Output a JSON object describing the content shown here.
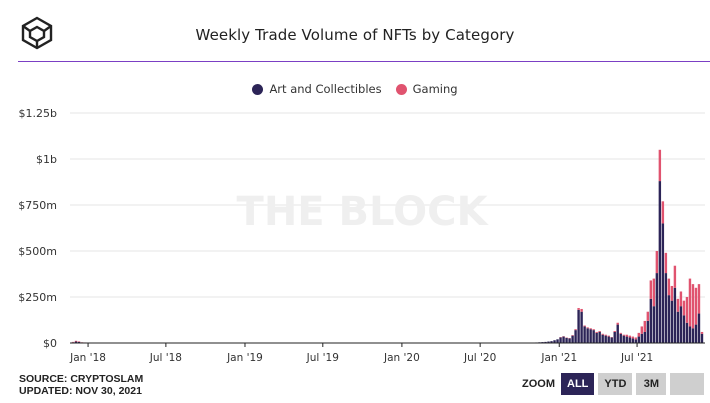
{
  "header": {
    "title": "Weekly Trade Volume of NFTs by Category"
  },
  "footer": {
    "source": "SOURCE: CRYPTOSLAM",
    "updated": "UPDATED: NOV 30, 2021"
  },
  "zoom": {
    "label": "ZOOM",
    "buttons": [
      "ALL",
      "YTD",
      "3M",
      ""
    ],
    "active": "ALL"
  },
  "watermark": "THE BLOCK",
  "colors": {
    "art": "#2c2457",
    "gaming": "#e0536f",
    "grid": "#e6e6e6",
    "accent": "#7b3fc4"
  },
  "chart_data": {
    "type": "bar",
    "stacked": true,
    "title": "Weekly Trade Volume of NFTs by Category",
    "legend_position": "top",
    "y_ticks": [
      "$0",
      "$250m",
      "$500m",
      "$750m",
      "$1b",
      "$1.25b"
    ],
    "ylim": [
      0,
      1250
    ],
    "y_unit": "millions USD",
    "x_tick_labels": [
      "Jan '18",
      "Jul '18",
      "Jan '19",
      "Jul '19",
      "Jan '20",
      "Jul '20",
      "Jan '21",
      "Jul '21"
    ],
    "x_tick_dates": [
      "2018-01-01",
      "2018-07-01",
      "2019-01-01",
      "2019-07-01",
      "2020-01-01",
      "2020-07-01",
      "2021-01-01",
      "2021-07-01"
    ],
    "x_range": [
      "2017-11-20",
      "2021-12-06"
    ],
    "x": [
      "2017-11-27",
      "2017-12-04",
      "2017-12-11",
      "2017-12-18",
      "2017-12-25",
      "2018-01-01",
      "2018-01-08",
      "2018-01-15",
      "2020-11-02",
      "2020-11-09",
      "2020-11-16",
      "2020-11-23",
      "2020-11-30",
      "2020-12-07",
      "2020-12-14",
      "2020-12-21",
      "2020-12-28",
      "2021-01-04",
      "2021-01-11",
      "2021-01-18",
      "2021-01-25",
      "2021-02-01",
      "2021-02-08",
      "2021-02-15",
      "2021-02-22",
      "2021-03-01",
      "2021-03-08",
      "2021-03-15",
      "2021-03-22",
      "2021-03-29",
      "2021-04-05",
      "2021-04-12",
      "2021-04-19",
      "2021-04-26",
      "2021-05-03",
      "2021-05-10",
      "2021-05-17",
      "2021-05-24",
      "2021-05-31",
      "2021-06-07",
      "2021-06-14",
      "2021-06-21",
      "2021-06-28",
      "2021-07-05",
      "2021-07-12",
      "2021-07-19",
      "2021-07-26",
      "2021-08-02",
      "2021-08-09",
      "2021-08-16",
      "2021-08-23",
      "2021-08-30",
      "2021-09-06",
      "2021-09-13",
      "2021-09-20",
      "2021-09-27",
      "2021-10-04",
      "2021-10-11",
      "2021-10-18",
      "2021-10-25",
      "2021-11-01",
      "2021-11-08",
      "2021-11-15",
      "2021-11-22",
      "2021-11-29"
    ],
    "series": [
      {
        "name": "Art and Collectibles",
        "values": [
          4,
          8,
          6,
          3,
          2,
          1,
          1,
          1,
          2,
          3,
          4,
          5,
          6,
          8,
          10,
          15,
          20,
          30,
          35,
          28,
          25,
          40,
          70,
          180,
          170,
          90,
          80,
          75,
          70,
          55,
          60,
          45,
          40,
          35,
          30,
          60,
          100,
          50,
          40,
          35,
          30,
          25,
          20,
          35,
          50,
          60,
          120,
          240,
          200,
          380,
          880,
          650,
          380,
          260,
          230,
          300,
          170,
          200,
          150,
          110,
          90,
          80,
          100,
          160,
          50
        ]
      },
      {
        "name": "Gaming",
        "values": [
          2,
          4,
          3,
          1,
          1,
          0,
          0,
          0,
          0,
          0,
          0,
          0,
          0,
          0,
          0,
          0,
          0,
          2,
          2,
          2,
          2,
          3,
          5,
          10,
          15,
          5,
          5,
          5,
          5,
          5,
          5,
          5,
          5,
          5,
          2,
          5,
          10,
          5,
          5,
          10,
          10,
          10,
          10,
          20,
          40,
          60,
          50,
          100,
          150,
          120,
          170,
          120,
          110,
          90,
          80,
          120,
          70,
          80,
          80,
          140,
          260,
          240,
          200,
          160,
          10
        ]
      }
    ]
  }
}
